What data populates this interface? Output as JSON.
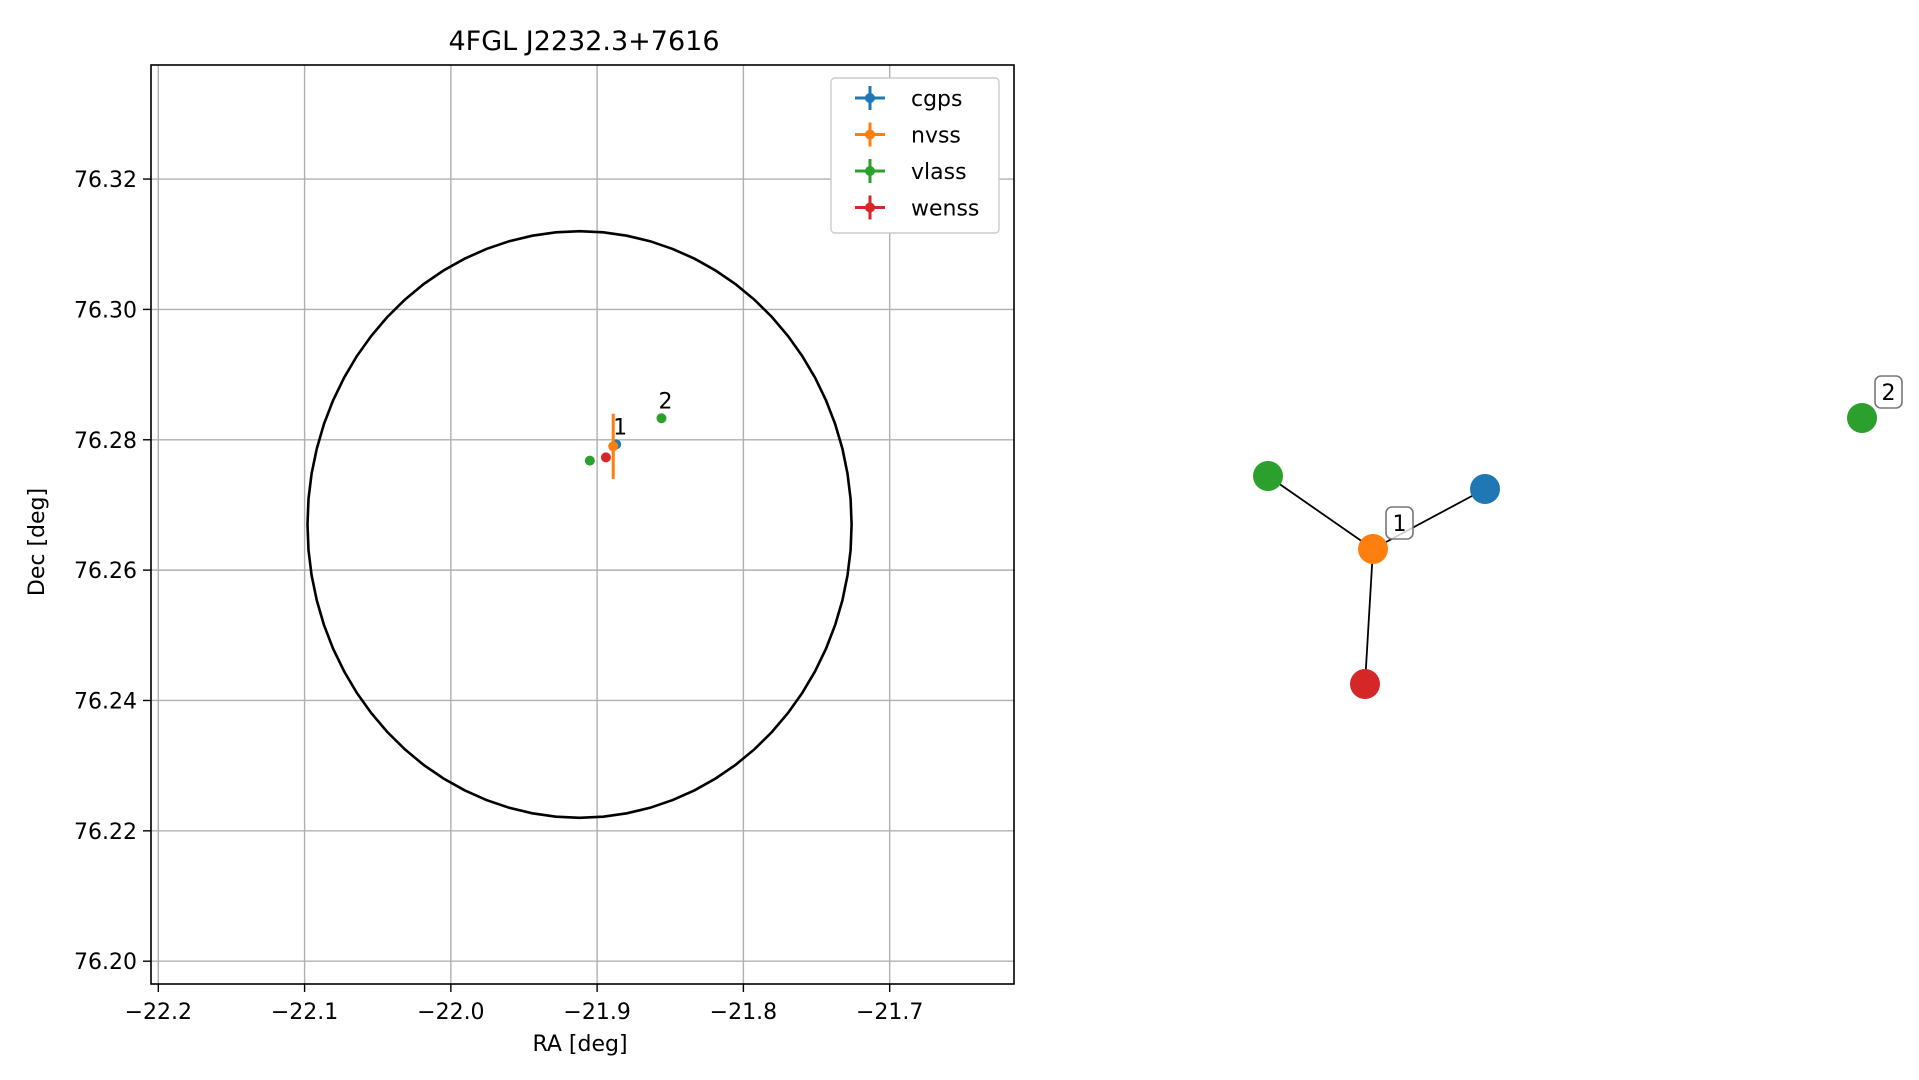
{
  "chart_data": [
    {
      "type": "scatter",
      "title": "4FGL J2232.3+7616",
      "xlabel": "RA [deg]",
      "ylabel": "Dec [deg]",
      "xlim": [
        -22.205,
        -21.615
      ],
      "ylim": [
        76.1965,
        76.3375
      ],
      "xticks": [
        -22.2,
        -22.1,
        -22.0,
        -21.9,
        -21.8,
        -21.7
      ],
      "xtick_labels": [
        "−22.2",
        "−22.1",
        "−22.0",
        "−21.9",
        "−21.8",
        "−21.7"
      ],
      "yticks": [
        76.2,
        76.22,
        76.24,
        76.26,
        76.28,
        76.3,
        76.32
      ],
      "ytick_labels": [
        "76.20",
        "76.22",
        "76.24",
        "76.26",
        "76.28",
        "76.30",
        "76.32"
      ],
      "grid": true,
      "legend_position": "top-right",
      "series": [
        {
          "name": "cgps",
          "color": "#1f77b4",
          "points": [
            {
              "x": -21.887,
              "y": 76.2793,
              "xerr": 0.0,
              "yerr": 0.0
            }
          ]
        },
        {
          "name": "nvss",
          "color": "#ff7f0e",
          "points": [
            {
              "x": -21.889,
              "y": 76.279,
              "xerr": 0.002,
              "yerr": 0.005
            }
          ]
        },
        {
          "name": "vlass",
          "color": "#2ca02c",
          "points": [
            {
              "x": -21.905,
              "y": 76.2768,
              "xerr": 0.0,
              "yerr": 0.0
            },
            {
              "x": -21.856,
              "y": 76.2833,
              "xerr": 0.0,
              "yerr": 0.0
            }
          ]
        },
        {
          "name": "wenss",
          "color": "#d62728",
          "points": [
            {
              "x": -21.894,
              "y": 76.2773,
              "xerr": 0.0,
              "yerr": 0.0
            }
          ]
        }
      ],
      "annotations": [
        {
          "text": "1",
          "x": -21.887,
          "y": 76.2793
        },
        {
          "text": "2",
          "x": -21.856,
          "y": 76.2833
        }
      ],
      "ellipse": {
        "cx": -21.912,
        "cy": 76.267,
        "rx": 0.186,
        "ry": 0.045,
        "color": "#000000"
      }
    },
    {
      "type": "network",
      "nodes": [
        {
          "id": "vlass-1",
          "color": "#2ca02c"
        },
        {
          "id": "cgps-1",
          "color": "#1f77b4"
        },
        {
          "id": "nvss-1",
          "color": "#ff7f0e"
        },
        {
          "id": "wenss-1",
          "color": "#d62728"
        },
        {
          "id": "vlass-2",
          "color": "#2ca02c"
        }
      ],
      "edges": [
        [
          "vlass-1",
          "nvss-1"
        ],
        [
          "cgps-1",
          "nvss-1"
        ],
        [
          "wenss-1",
          "nvss-1"
        ]
      ],
      "labels": [
        {
          "text": "1",
          "node": "nvss-1"
        },
        {
          "text": "2",
          "node": "vlass-2"
        }
      ]
    }
  ]
}
